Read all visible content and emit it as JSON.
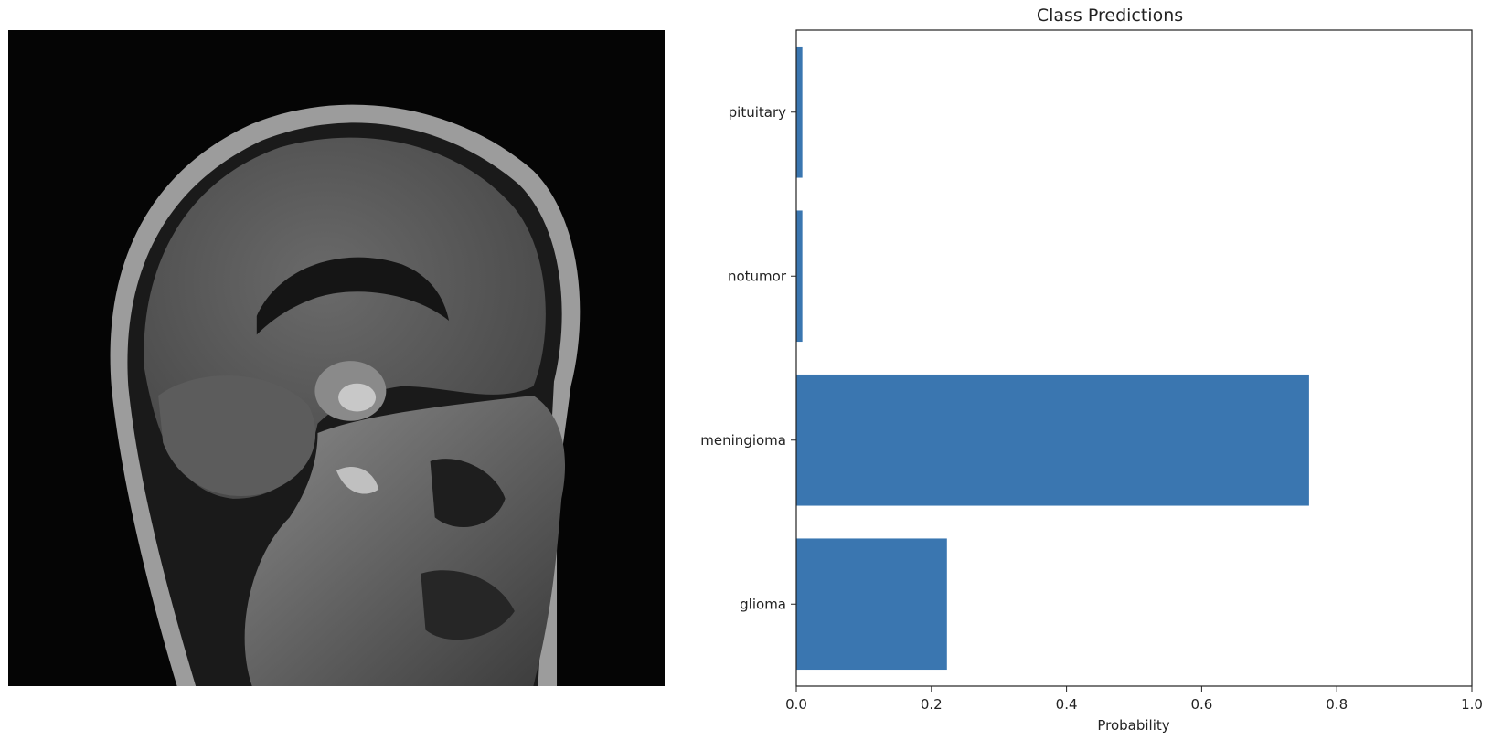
{
  "image_panel": {
    "icon": "mri-brain-scan"
  },
  "chart_data": {
    "type": "bar",
    "orientation": "horizontal",
    "title": "Class Predictions",
    "xlabel": "Probability",
    "ylabel": "",
    "categories": [
      "glioma",
      "meningioma",
      "notumor",
      "pituitary"
    ],
    "values": [
      0.223,
      0.759,
      0.009,
      0.009
    ],
    "xlim": [
      0,
      1.0
    ],
    "xticks": [
      "0.0",
      "0.2",
      "0.4",
      "0.6",
      "0.8",
      "1.0"
    ],
    "grid": false,
    "legend": "none",
    "bar_color": "#3a76b0"
  }
}
